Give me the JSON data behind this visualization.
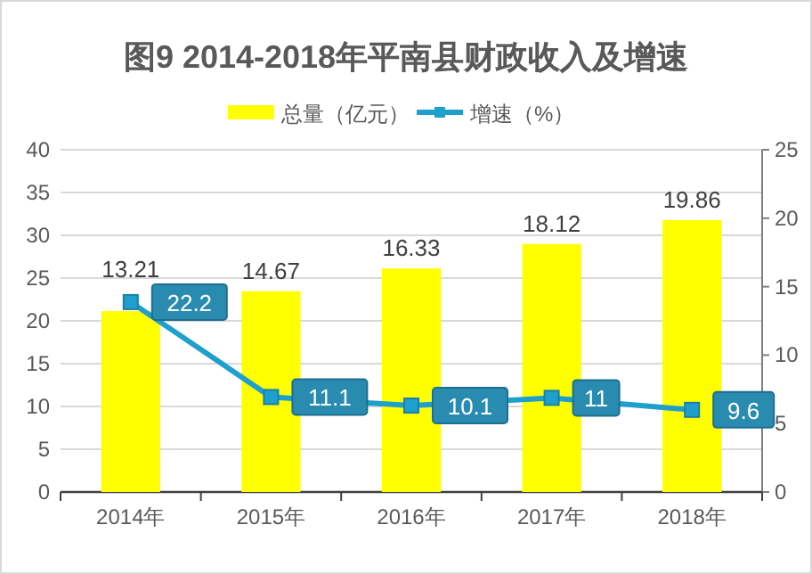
{
  "chart_data": {
    "type": "bar",
    "title": "图9   2014-2018年平南县财政收入及增速",
    "categories": [
      "2014年",
      "2015年",
      "2016年",
      "2017年",
      "2018年"
    ],
    "series": [
      {
        "name": "总量（亿元）",
        "color": "#ffff00",
        "axis": "y2",
        "values": [
          13.21,
          14.67,
          16.33,
          18.12,
          19.86
        ]
      },
      {
        "name": "增速（%）",
        "type": "line",
        "color": "#1fa0cc",
        "axis": "y",
        "values": [
          22.2,
          11.1,
          10.1,
          11,
          9.6
        ]
      }
    ],
    "marker": "square",
    "ylim": [
      0,
      40
    ],
    "yticks": [
      0,
      5,
      10,
      15,
      20,
      25,
      30,
      35,
      40
    ],
    "y2lim": [
      0,
      25
    ],
    "y2ticks": [
      0,
      5,
      10,
      15,
      20,
      25
    ],
    "grid": "y",
    "legend": "top",
    "data_labels": true
  }
}
